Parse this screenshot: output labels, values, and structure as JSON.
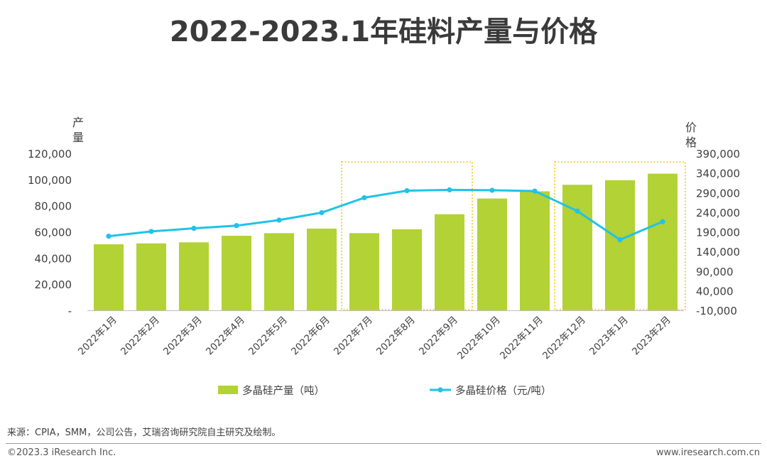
{
  "page": {
    "title": "2022-2023.1年硅料产量与价格",
    "source": "来源：CPIA，SMM，公司公告，艾瑞咨询研究院自主研究及绘制。",
    "copyright": "©2023.3 iResearch Inc.",
    "website": "www.iresearch.com.cn"
  },
  "chart_data": {
    "type": "bar+line",
    "title": "2022-2023.1年硅料产量与价格",
    "categories": [
      "2022年1月",
      "2022年2月",
      "2022年3月",
      "2022年4月",
      "2022年5月",
      "2022年6月",
      "2022年7月",
      "2022年8月",
      "2022年9月",
      "2022年10月",
      "2022年11月",
      "2022年12月",
      "2023年1月",
      "2023年2月"
    ],
    "series": [
      {
        "name": "多晶硅产量（吨）",
        "type": "bar",
        "axis": "left",
        "color": "#b2d235",
        "values": [
          50500,
          51200,
          52000,
          57000,
          59000,
          62500,
          59000,
          62000,
          73500,
          85500,
          91000,
          96000,
          99500,
          104500
        ]
      },
      {
        "name": "多晶硅价格（元/吨）",
        "type": "line",
        "axis": "right",
        "color": "#1fc3e9",
        "values": [
          179000,
          191000,
          199000,
          206000,
          220000,
          239000,
          277000,
          295000,
          297000,
          296000,
          294000,
          243000,
          170000,
          216000
        ]
      }
    ],
    "left_axis": {
      "label": "产量",
      "min": 0,
      "max": 120000,
      "ticks": [
        "-",
        "20,000",
        "40,000",
        "60,000",
        "80,000",
        "100,000",
        "120,000"
      ]
    },
    "right_axis": {
      "label": "价格",
      "min": -10000,
      "max": 390000,
      "ticks": [
        "-10,000",
        "40,000",
        "90,000",
        "140,000",
        "190,000",
        "240,000",
        "290,000",
        "340,000",
        "390,000"
      ]
    },
    "highlight_ranges": [
      {
        "from": "2022年7月",
        "to": "2022年9月",
        "color": "#f2c811"
      },
      {
        "from": "2022年12月",
        "to": "2023年2月",
        "color": "#f2c811"
      }
    ],
    "legend_position": "bottom"
  }
}
